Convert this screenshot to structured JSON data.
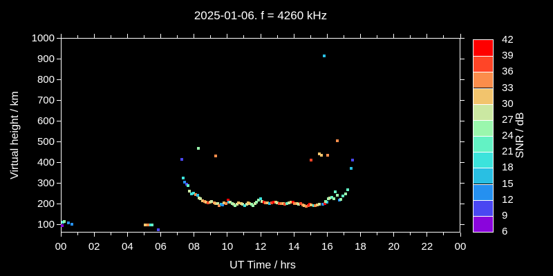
{
  "title": "2025-01-06. f = 4260 kHz",
  "colors": {
    "background": "#000000",
    "foreground": "#ffffff"
  },
  "axes": {
    "x": {
      "label": "UT Time / hrs",
      "range_hours": [
        0,
        24
      ],
      "major_tick_step_hours": 2,
      "minor_tick_step_hours": 1,
      "tick_labels": [
        "00",
        "02",
        "04",
        "06",
        "08",
        "10",
        "12",
        "14",
        "16",
        "18",
        "20",
        "22",
        "00"
      ]
    },
    "y": {
      "label": "Virtual height / km",
      "range_km": [
        60,
        1000
      ],
      "tick_step_km": 100,
      "tick_labels": [
        "100",
        "200",
        "300",
        "400",
        "500",
        "600",
        "700",
        "800",
        "900",
        "1000"
      ]
    }
  },
  "colorbar": {
    "label": "SNR / dB",
    "tick_labels": [
      "6",
      "9",
      "12",
      "15",
      "18",
      "21",
      "24",
      "27",
      "30",
      "33",
      "36",
      "39",
      "42"
    ],
    "min_db": 6,
    "max_db": 42,
    "step_db": 3,
    "segments": [
      {
        "from_db": 6,
        "to_db": 9,
        "color": "#8A05DC"
      },
      {
        "from_db": 9,
        "to_db": 12,
        "color": "#4A47F2"
      },
      {
        "from_db": 12,
        "to_db": 15,
        "color": "#2590F0"
      },
      {
        "from_db": 15,
        "to_db": 18,
        "color": "#29BFE3"
      },
      {
        "from_db": 18,
        "to_db": 21,
        "color": "#3CE3DC"
      },
      {
        "from_db": 21,
        "to_db": 24,
        "color": "#63F2C4"
      },
      {
        "from_db": 24,
        "to_db": 27,
        "color": "#9AF7AD"
      },
      {
        "from_db": 27,
        "to_db": 30,
        "color": "#CBE8A2"
      },
      {
        "from_db": 30,
        "to_db": 33,
        "color": "#F2C46D"
      },
      {
        "from_db": 33,
        "to_db": 36,
        "color": "#FB8D4B"
      },
      {
        "from_db": 36,
        "to_db": 39,
        "color": "#FF4527"
      },
      {
        "from_db": 39,
        "to_db": 42,
        "color": "#FF0000"
      }
    ]
  },
  "chart_data": {
    "type": "scatter",
    "title": "2025-01-06. f = 4260 kHz",
    "xlabel": "UT Time / hrs",
    "ylabel": "Virtual height / km",
    "zlabel": "SNR / dB",
    "x_range_hours": [
      0,
      24
    ],
    "y_range_km": [
      60,
      1000
    ],
    "snr_range_db": [
      6,
      42
    ],
    "points_t_h_snr": [
      [
        0.08,
        95,
        8
      ],
      [
        0.13,
        110,
        19
      ],
      [
        0.22,
        114,
        25
      ],
      [
        0.45,
        106,
        13
      ],
      [
        0.65,
        100,
        13
      ],
      [
        5.08,
        98,
        31
      ],
      [
        5.22,
        98,
        34
      ],
      [
        5.38,
        98,
        19
      ],
      [
        5.5,
        98,
        22
      ],
      [
        5.85,
        75,
        10
      ],
      [
        7.27,
        413,
        10
      ],
      [
        7.33,
        324,
        19
      ],
      [
        7.43,
        302,
        13
      ],
      [
        7.55,
        293,
        10
      ],
      [
        7.64,
        286,
        22
      ],
      [
        7.71,
        261,
        28
      ],
      [
        7.85,
        247,
        18
      ],
      [
        7.96,
        249,
        19
      ],
      [
        8.09,
        242,
        34
      ],
      [
        8.23,
        239,
        17
      ],
      [
        8.3,
        228,
        27
      ],
      [
        8.27,
        466,
        25
      ],
      [
        9.3,
        431,
        34
      ],
      [
        8.4,
        222,
        28
      ],
      [
        8.5,
        213,
        31
      ],
      [
        8.62,
        211,
        34
      ],
      [
        8.72,
        208,
        31
      ],
      [
        8.84,
        203,
        37
      ],
      [
        8.95,
        207,
        31
      ],
      [
        9.07,
        209,
        28
      ],
      [
        9.2,
        202,
        34
      ],
      [
        9.32,
        201,
        31
      ],
      [
        9.42,
        200,
        28
      ],
      [
        9.51,
        191,
        34
      ],
      [
        9.62,
        198,
        17
      ],
      [
        9.72,
        194,
        13
      ],
      [
        9.82,
        204,
        31
      ],
      [
        9.92,
        199,
        34
      ],
      [
        10.04,
        217,
        40
      ],
      [
        10.07,
        206,
        17
      ],
      [
        10.18,
        206,
        28
      ],
      [
        10.28,
        201,
        25
      ],
      [
        10.37,
        196,
        28
      ],
      [
        10.48,
        191,
        25
      ],
      [
        10.59,
        198,
        28
      ],
      [
        10.69,
        202,
        31
      ],
      [
        10.83,
        200,
        31
      ],
      [
        10.94,
        196,
        28
      ],
      [
        11.03,
        191,
        18
      ],
      [
        11.15,
        198,
        28
      ],
      [
        11.24,
        202,
        31
      ],
      [
        11.35,
        200,
        31
      ],
      [
        11.45,
        196,
        25
      ],
      [
        11.56,
        191,
        25
      ],
      [
        11.66,
        200,
        28
      ],
      [
        11.76,
        206,
        25
      ],
      [
        11.87,
        217,
        25
      ],
      [
        11.98,
        222,
        18
      ],
      [
        12.08,
        211,
        28
      ],
      [
        12.2,
        208,
        40
      ],
      [
        12.3,
        204,
        34
      ],
      [
        12.42,
        204,
        31
      ],
      [
        12.56,
        199,
        17
      ],
      [
        12.65,
        204,
        37
      ],
      [
        12.78,
        208,
        40
      ],
      [
        12.9,
        206,
        31
      ],
      [
        13.0,
        203,
        28
      ],
      [
        13.12,
        201,
        37
      ],
      [
        13.24,
        199,
        34
      ],
      [
        13.35,
        201,
        31
      ],
      [
        13.45,
        196,
        37
      ],
      [
        13.58,
        199,
        22
      ],
      [
        13.7,
        204,
        28
      ],
      [
        13.82,
        208,
        31
      ],
      [
        13.95,
        206,
        40
      ],
      [
        14.05,
        201,
        34
      ],
      [
        14.18,
        199,
        31
      ],
      [
        14.3,
        196,
        28
      ],
      [
        14.42,
        199,
        37
      ],
      [
        14.52,
        193,
        34
      ],
      [
        14.62,
        189,
        31
      ],
      [
        14.72,
        186,
        34
      ],
      [
        14.85,
        191,
        37
      ],
      [
        14.95,
        196,
        40
      ],
      [
        15.05,
        193,
        31
      ],
      [
        15.18,
        189,
        19
      ],
      [
        15.3,
        191,
        34
      ],
      [
        15.42,
        193,
        31
      ],
      [
        15.55,
        196,
        28
      ],
      [
        15.72,
        196,
        13
      ],
      [
        15.85,
        201,
        40
      ],
      [
        16.0,
        206,
        17
      ],
      [
        15.02,
        409,
        37
      ],
      [
        15.54,
        441,
        30
      ],
      [
        15.65,
        434,
        31
      ],
      [
        16.03,
        433,
        34
      ],
      [
        16.6,
        503,
        34
      ],
      [
        15.82,
        914,
        16
      ],
      [
        15.92,
        211,
        25
      ],
      [
        16.05,
        222,
        25
      ],
      [
        16.15,
        228,
        28
      ],
      [
        16.28,
        230,
        22
      ],
      [
        16.4,
        223,
        25
      ],
      [
        16.49,
        258,
        22
      ],
      [
        16.6,
        240,
        25
      ],
      [
        16.72,
        217,
        13
      ],
      [
        16.83,
        219,
        25
      ],
      [
        16.95,
        237,
        22
      ],
      [
        17.1,
        247,
        25
      ],
      [
        17.25,
        267,
        22
      ],
      [
        17.46,
        369,
        17
      ],
      [
        17.53,
        409,
        10
      ]
    ]
  }
}
